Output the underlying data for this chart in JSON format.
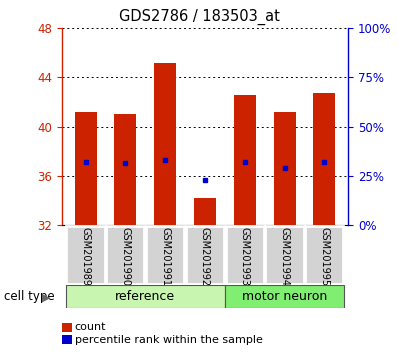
{
  "title": "GDS2786 / 183503_at",
  "samples": [
    "GSM201989",
    "GSM201990",
    "GSM201991",
    "GSM201992",
    "GSM201993",
    "GSM201994",
    "GSM201995"
  ],
  "bar_bottom": 32,
  "bar_tops": [
    41.2,
    41.0,
    45.2,
    34.2,
    42.6,
    41.2,
    42.7
  ],
  "percentile_values": [
    32.0,
    31.2,
    33.2,
    22.8,
    32.0,
    28.8,
    32.0
  ],
  "ylim_left": [
    32,
    48
  ],
  "ylim_right": [
    0,
    100
  ],
  "yticks_left": [
    32,
    36,
    40,
    44,
    48
  ],
  "yticks_right": [
    0,
    25,
    50,
    75,
    100
  ],
  "ytick_labels_right": [
    "0%",
    "25%",
    "50%",
    "75%",
    "100%"
  ],
  "bar_color": "#cc2200",
  "percentile_color": "#0000cc",
  "ref_group_color": "#c8f5b0",
  "motor_group_color": "#80ee70",
  "cell_type_label": "cell type",
  "legend_count_label": "count",
  "legend_percentile_label": "percentile rank within the sample",
  "ref_count": 4,
  "motor_count": 3
}
